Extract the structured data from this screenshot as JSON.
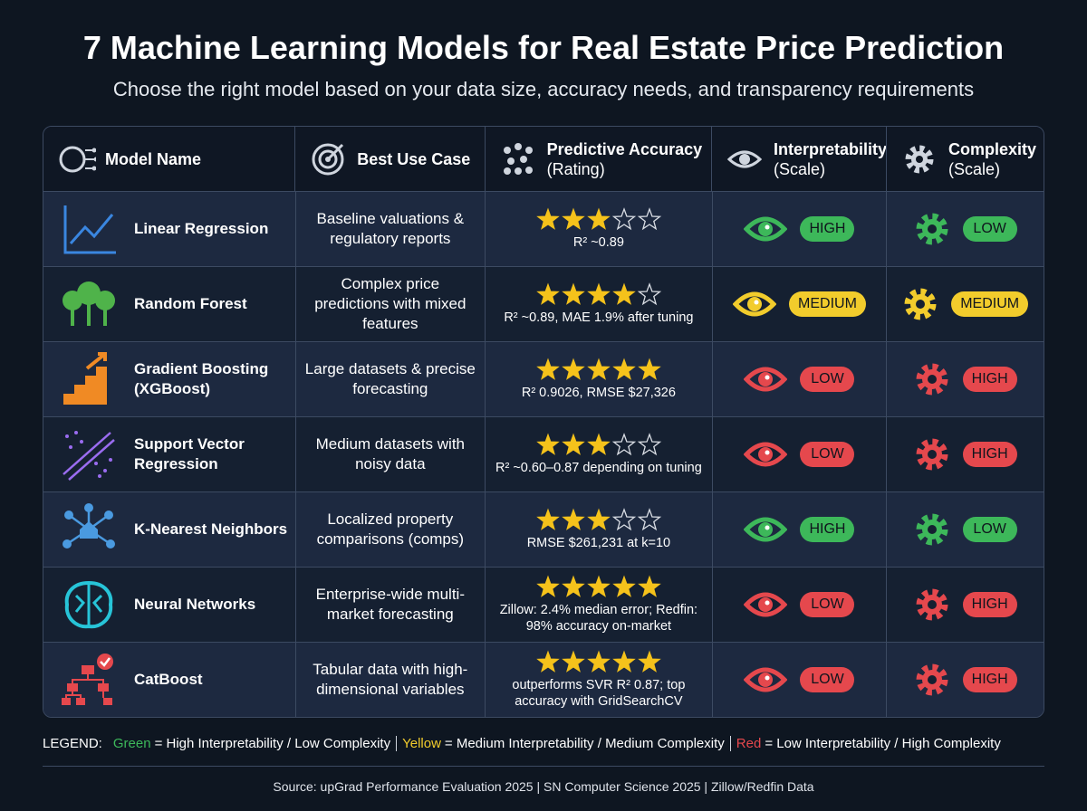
{
  "title": "7 Machine Learning Models for Real Estate Price Prediction",
  "subtitle": "Choose the right model based on your data size, accuracy needs, and transparency requirements",
  "table": {
    "headers": [
      {
        "label": "Model Name"
      },
      {
        "label": "Best Use Case"
      },
      {
        "label": "Predictive Accuracy",
        "sub": "(Rating)"
      },
      {
        "label": "Interpretability",
        "sub": "(Scale)"
      },
      {
        "label": "Complexity",
        "sub": "(Scale)"
      }
    ],
    "rating_max": 5,
    "star_color": "#f5c21b",
    "rows": [
      {
        "name": "Linear Regression",
        "use_case": "Baseline valuations & regulatory reports",
        "rating": 3,
        "accuracy_note": "R² ~0.89",
        "interpretability": {
          "label": "HIGH",
          "color": "#3db85a"
        },
        "complexity": {
          "label": "LOW",
          "color": "#3db85a"
        }
      },
      {
        "name": "Random Forest",
        "use_case": "Complex price predictions with mixed features",
        "rating": 4,
        "accuracy_note": "R² ~0.89, MAE 1.9% after tuning",
        "interpretability": {
          "label": "MEDIUM",
          "color": "#f2cc2c"
        },
        "complexity": {
          "label": "MEDIUM",
          "color": "#f2cc2c"
        }
      },
      {
        "name": "Gradient Boosting (XGBoost)",
        "use_case": "Large datasets & precise forecasting",
        "rating": 5,
        "accuracy_note": "R² 0.9026, RMSE $27,326",
        "interpretability": {
          "label": "LOW",
          "color": "#e5484d"
        },
        "complexity": {
          "label": "HIGH",
          "color": "#e5484d"
        }
      },
      {
        "name": "Support Vector Regression",
        "use_case": "Medium datasets with noisy data",
        "rating": 3,
        "accuracy_note": "R² ~0.60–0.87 depending on tuning",
        "interpretability": {
          "label": "LOW",
          "color": "#e5484d"
        },
        "complexity": {
          "label": "HIGH",
          "color": "#e5484d"
        }
      },
      {
        "name": "K-Nearest Neighbors",
        "use_case": "Localized property comparisons (comps)",
        "rating": 3,
        "accuracy_note": "RMSE $261,231 at k=10",
        "interpretability": {
          "label": "HIGH",
          "color": "#3db85a"
        },
        "complexity": {
          "label": "LOW",
          "color": "#3db85a"
        }
      },
      {
        "name": "Neural Networks",
        "use_case": "Enterprise-wide multi-market forecasting",
        "rating": 5,
        "accuracy_note": "Zillow: 2.4% median error; Redfin: 98% accuracy on-market",
        "interpretability": {
          "label": "LOW",
          "color": "#e5484d"
        },
        "complexity": {
          "label": "HIGH",
          "color": "#e5484d"
        }
      },
      {
        "name": "CatBoost",
        "use_case": "Tabular data with high-dimensional variables",
        "rating": 5,
        "accuracy_note": "outperforms SVR R² 0.87; top accuracy with GridSearchCV",
        "interpretability": {
          "label": "LOW",
          "color": "#e5484d"
        },
        "complexity": {
          "label": "HIGH",
          "color": "#e5484d"
        }
      }
    ]
  },
  "legend": {
    "prefix": "LEGEND:",
    "items": [
      {
        "word": "Green",
        "color": "#3db85a",
        "text": "= High Interpretability / Low Complexity"
      },
      {
        "word": "Yellow",
        "color": "#f2cc2c",
        "text": "= Medium Interpretability / Medium Complexity"
      },
      {
        "word": "Red",
        "color": "#e5484d",
        "text": "= Low Interpretability / High Complexity"
      }
    ]
  },
  "source": "Source: upGrad Performance Evaluation 2025 | SN Computer Science 2025 | Zillow/Redfin Data"
}
